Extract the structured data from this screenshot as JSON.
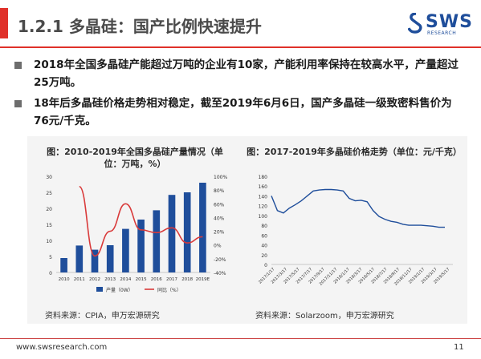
{
  "header": {
    "title": "1.2.1 多晶硅：国产比例快速提升",
    "logo_text": "SWS",
    "logo_sub": "RESEARCH"
  },
  "bullets": [
    "2018年全国多晶硅产能超过万吨的企业有10家，产能利用率保持在较高水平，产量超过25万吨。",
    "18年后多晶硅价格走势相对稳定，截至2019年6月6日，国产多晶硅一级致密料售价为76元/千克。"
  ],
  "left_caption": "图：2010-2019年全国多晶硅产量情况（单位：万吨，%）",
  "right_caption": "图：2017-2019年多晶硅价格走势（单位：元/千克）",
  "left_source": "资料来源：CPIA，申万宏源研究",
  "right_source": "资料来源：Solarzoom，申万宏源研究",
  "footer": {
    "url": "www.swsresearch.com",
    "page": "11"
  },
  "colors": {
    "accent": "#e0312a",
    "bar": "#1f4e9b",
    "line_red": "#d93a3a",
    "price_line": "#1f4e9b"
  },
  "chart_data": [
    {
      "type": "bar",
      "categories": [
        "2010",
        "2011",
        "2012",
        "2013",
        "2014",
        "2015",
        "2016",
        "2017",
        "2018",
        "2019E"
      ],
      "series": [
        {
          "name": "产量（0W）",
          "values": [
            4.5,
            8.4,
            7.1,
            8.5,
            13.6,
            16.5,
            19.4,
            24.2,
            25.0,
            28.0
          ]
        },
        {
          "name": "同比（%）",
          "values": [
            null,
            85,
            -16,
            20,
            60,
            22,
            18,
            25,
            3,
            12
          ],
          "axis": "right",
          "style": "line"
        }
      ],
      "y_ticks": [
        "0",
        "5",
        "10",
        "15",
        "20",
        "25",
        "30"
      ],
      "y2_ticks": [
        "-40%",
        "-20%",
        "0%",
        "20%",
        "40%",
        "60%",
        "80%",
        "100%"
      ],
      "ylim": [
        0,
        30
      ],
      "y2lim": [
        -40,
        100
      ],
      "legend": [
        "产量（0W）",
        "同比（%）"
      ]
    },
    {
      "type": "line",
      "x_ticks": [
        "2017/1/17",
        "2017/3/17",
        "2017/5/17",
        "2017/7/17",
        "2017/9/17",
        "2017/11/17",
        "2018/1/17",
        "2018/3/17",
        "2018/5/17",
        "2018/7/17",
        "2018/9/17",
        "2018/11/17",
        "2019/1/17",
        "2019/3/17",
        "2019/5/17"
      ],
      "series": [
        {
          "values": [
            140,
            110,
            105,
            115,
            122,
            130,
            140,
            150,
            152,
            153,
            153,
            152,
            150,
            135,
            130,
            131,
            128,
            110,
            98,
            92,
            88,
            86,
            82,
            80,
            80,
            80,
            79,
            78,
            76,
            76
          ]
        }
      ],
      "y_ticks": [
        "0",
        "20",
        "40",
        "60",
        "80",
        "100",
        "120",
        "140",
        "160",
        "180"
      ],
      "ylim": [
        0,
        180
      ]
    }
  ]
}
